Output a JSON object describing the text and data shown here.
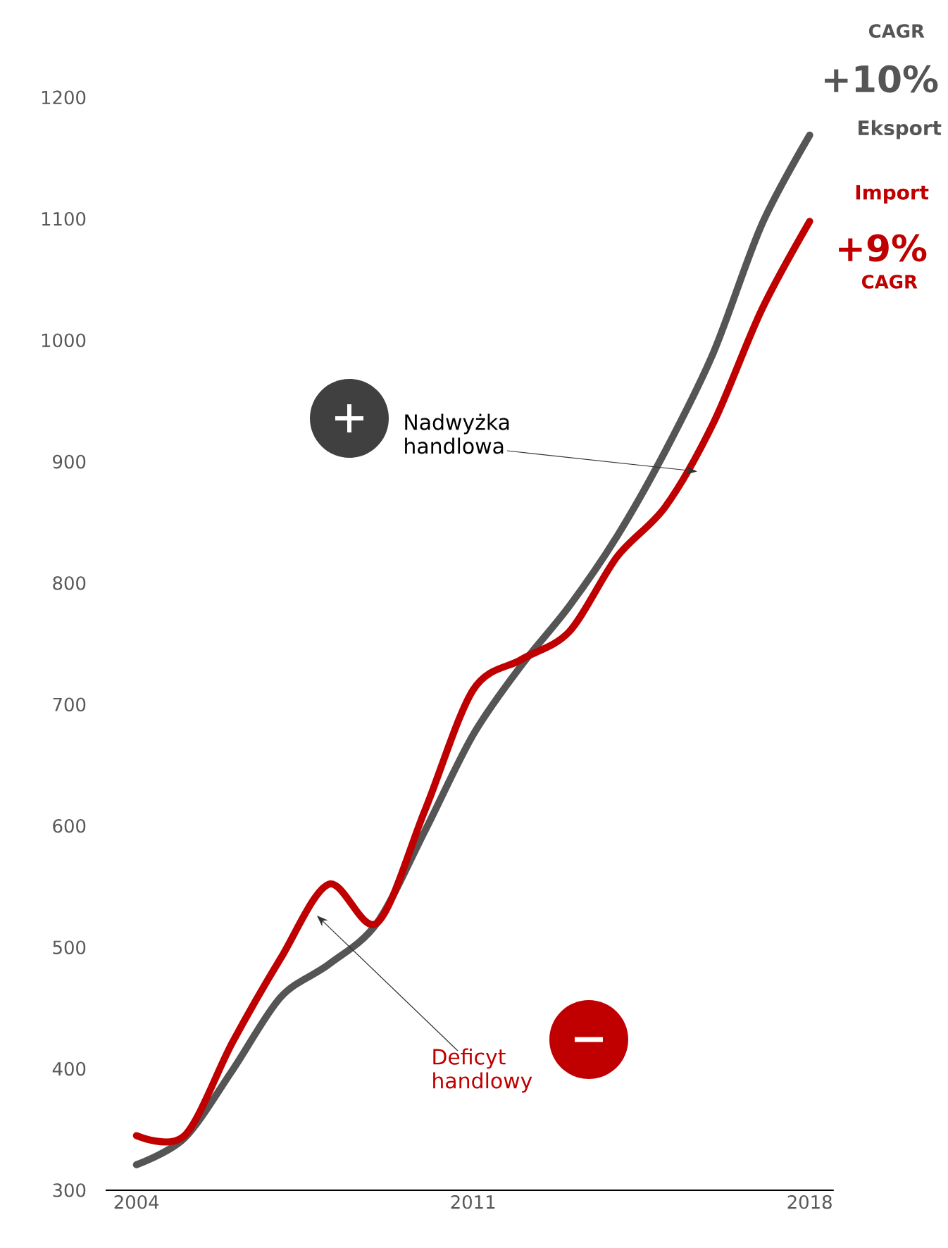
{
  "chart_data": {
    "type": "line",
    "x": [
      2004,
      2005,
      2006,
      2007,
      2008,
      2009,
      2010,
      2011,
      2012,
      2013,
      2014,
      2015,
      2016,
      2017,
      2018
    ],
    "series": [
      {
        "name": "Eksport",
        "color": "#555555",
        "values": [
          321,
          343,
          399,
          459,
          486,
          520,
          596,
          675,
          732,
          781,
          839,
          909,
          990,
          1095,
          1169
        ]
      },
      {
        "name": "Import",
        "color": "#c00000",
        "values": [
          345,
          345,
          422,
          491,
          552,
          520,
          613,
          712,
          737,
          760,
          822,
          863,
          932,
          1025,
          1098
        ]
      }
    ],
    "xlim": [
      2003.36,
      2018.5
    ],
    "ylim": [
      300,
      1200
    ],
    "xticks": [
      2004,
      2011,
      2018
    ],
    "yticks": [
      300,
      400,
      500,
      600,
      700,
      800,
      900,
      1000,
      1100,
      1200
    ],
    "marker": "none",
    "line_style": "solid",
    "annotations": [
      "CAGR",
      "+10%",
      "+9%",
      "CAGR",
      {
        "text": "Nadwyżka handlowa",
        "x": 2015.66,
        "y": 892
      },
      "Deficyt handlowy"
    ]
  }
}
